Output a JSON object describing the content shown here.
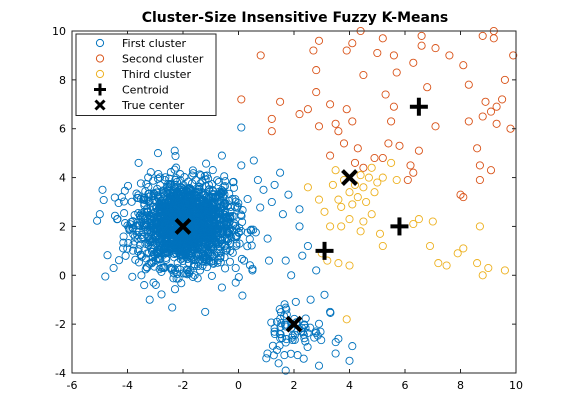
{
  "chart_data": {
    "type": "scatter",
    "title": "Cluster-Size Insensitive Fuzzy K-Means",
    "xlabel": "",
    "ylabel": "",
    "xlim": [
      -6,
      10
    ],
    "ylim": [
      -4,
      10
    ],
    "xticks": [
      "-6",
      "-4",
      "-2",
      "0",
      "2",
      "4",
      "6",
      "8",
      "10"
    ],
    "yticks": [
      "-4",
      "-2",
      "0",
      "2",
      "4",
      "6",
      "8",
      "10"
    ],
    "grid": false,
    "legend_position": "top-left",
    "series": [
      {
        "name": "First cluster",
        "marker": "circle",
        "color": "#0072BD",
        "dense_blobs": [
          {
            "center": [
              -1.9,
              2.1
            ],
            "spread": [
              0.85,
              0.85
            ],
            "count": 1800
          },
          {
            "center": [
              2.0,
              -2.2
            ],
            "spread": [
              0.55,
              0.65
            ],
            "count": 70
          }
        ],
        "points": [
          [
            0.1,
            6.05
          ],
          [
            0.55,
            4.7
          ],
          [
            0.9,
            3.5
          ],
          [
            1.2,
            3.0
          ],
          [
            1.5,
            4.2
          ],
          [
            1.8,
            3.3
          ],
          [
            1.6,
            2.5
          ],
          [
            1.05,
            1.5
          ],
          [
            0.2,
            0.6
          ],
          [
            -0.3,
            1.0
          ],
          [
            0.5,
            0.2
          ],
          [
            1.1,
            0.6
          ],
          [
            -0.1,
            -0.3
          ],
          [
            -0.6,
            -0.5
          ],
          [
            -3.4,
            -0.4
          ],
          [
            -4.5,
            0.3
          ],
          [
            -4.8,
            -0.05
          ],
          [
            -5.0,
            2.5
          ],
          [
            -4.9,
            3.5
          ],
          [
            -4.2,
            3.2
          ],
          [
            -3.6,
            4.6
          ],
          [
            -2.3,
            5.1
          ],
          [
            -0.6,
            4.9
          ],
          [
            -2.9,
            5.0
          ],
          [
            -3.2,
            -1.0
          ],
          [
            -1.2,
            -1.5
          ],
          [
            -3.5,
            0.0
          ],
          [
            -0.1,
            0.3
          ],
          [
            1.7,
            0.6
          ],
          [
            2.2,
            2.7
          ],
          [
            2.3,
            0.8
          ],
          [
            2.8,
            0.2
          ],
          [
            2.6,
            -1.0
          ],
          [
            3.1,
            -0.8
          ],
          [
            3.3,
            -1.5
          ],
          [
            3.6,
            -2.6
          ],
          [
            3.5,
            -3.2
          ],
          [
            4.1,
            -2.9
          ],
          [
            4.0,
            -3.5
          ],
          [
            2.9,
            -3.7
          ],
          [
            1.7,
            -3.9
          ],
          [
            1.0,
            -3.4
          ],
          [
            1.9,
            0.0
          ],
          [
            2.2,
            2.0
          ],
          [
            1.3,
            3.7
          ],
          [
            0.7,
            3.9
          ],
          [
            0.1,
            4.5
          ],
          [
            2.5,
            1.2
          ]
        ]
      },
      {
        "name": "Second cluster",
        "marker": "circle",
        "color": "#D95319",
        "points": [
          [
            0.8,
            9.0
          ],
          [
            0.1,
            7.2
          ],
          [
            1.2,
            6.4
          ],
          [
            1.5,
            7.1
          ],
          [
            1.2,
            5.9
          ],
          [
            2.2,
            6.6
          ],
          [
            2.5,
            6.8
          ],
          [
            2.8,
            7.5
          ],
          [
            2.9,
            6.1
          ],
          [
            3.3,
            7.0
          ],
          [
            3.5,
            6.2
          ],
          [
            3.6,
            5.9
          ],
          [
            3.3,
            4.9
          ],
          [
            3.8,
            5.4
          ],
          [
            3.9,
            6.8
          ],
          [
            4.1,
            6.3
          ],
          [
            4.3,
            5.2
          ],
          [
            4.2,
            4.6
          ],
          [
            4.5,
            4.4
          ],
          [
            4.9,
            4.8
          ],
          [
            5.2,
            4.8
          ],
          [
            5.4,
            5.4
          ],
          [
            5.5,
            6.3
          ],
          [
            5.6,
            6.9
          ],
          [
            5.3,
            7.4
          ],
          [
            5.7,
            8.3
          ],
          [
            5.6,
            9.0
          ],
          [
            5.2,
            9.7
          ],
          [
            5.0,
            9.1
          ],
          [
            4.4,
            10.0
          ],
          [
            4.1,
            9.5
          ],
          [
            4.5,
            8.2
          ],
          [
            3.9,
            9.2
          ],
          [
            3.8,
            10.1
          ],
          [
            2.9,
            10.2
          ],
          [
            2.7,
            9.2
          ],
          [
            2.8,
            8.4
          ],
          [
            2.9,
            9.6
          ],
          [
            6.1,
            3.9
          ],
          [
            6.2,
            4.5
          ],
          [
            6.5,
            5.1
          ],
          [
            7.1,
            6.1
          ],
          [
            6.8,
            7.7
          ],
          [
            6.3,
            8.7
          ],
          [
            6.6,
            9.4
          ],
          [
            6.6,
            9.8
          ],
          [
            7.1,
            9.3
          ],
          [
            7.6,
            9.0
          ],
          [
            7.9,
            10.2
          ],
          [
            8.1,
            8.6
          ],
          [
            8.3,
            7.8
          ],
          [
            8.3,
            6.3
          ],
          [
            8.6,
            5.2
          ],
          [
            8.7,
            4.5
          ],
          [
            8.8,
            6.5
          ],
          [
            8.8,
            9.8
          ],
          [
            8.9,
            7.1
          ],
          [
            9.1,
            6.7
          ],
          [
            9.3,
            6.9
          ],
          [
            9.3,
            6.2
          ],
          [
            9.5,
            7.2
          ],
          [
            9.2,
            9.7
          ],
          [
            9.2,
            10.0
          ],
          [
            9.6,
            8.0
          ],
          [
            9.8,
            6.0
          ],
          [
            9.9,
            9.0
          ],
          [
            8.0,
            3.3
          ],
          [
            8.1,
            3.2
          ],
          [
            8.7,
            3.9
          ],
          [
            9.1,
            4.3
          ],
          [
            5.8,
            5.3
          ],
          [
            6.3,
            4.2
          ]
        ]
      },
      {
        "name": "Third cluster",
        "marker": "circle",
        "color": "#EDB120",
        "points": [
          [
            2.5,
            3.6
          ],
          [
            2.9,
            3.1
          ],
          [
            3.1,
            2.6
          ],
          [
            3.4,
            3.7
          ],
          [
            3.6,
            3.1
          ],
          [
            3.7,
            2.8
          ],
          [
            3.8,
            3.9
          ],
          [
            4.0,
            3.4
          ],
          [
            4.1,
            2.9
          ],
          [
            4.2,
            3.7
          ],
          [
            4.3,
            3.2
          ],
          [
            4.4,
            4.1
          ],
          [
            4.5,
            3.6
          ],
          [
            4.6,
            3.0
          ],
          [
            4.7,
            4.0
          ],
          [
            4.9,
            3.4
          ],
          [
            5.0,
            3.8
          ],
          [
            5.2,
            4.0
          ],
          [
            4.8,
            2.5
          ],
          [
            4.5,
            2.2
          ],
          [
            5.1,
            1.7
          ],
          [
            5.2,
            1.2
          ],
          [
            4.4,
            1.8
          ],
          [
            3.7,
            2.0
          ],
          [
            4.0,
            2.3
          ],
          [
            3.3,
            2.0
          ],
          [
            3.0,
            0.9
          ],
          [
            3.2,
            0.6
          ],
          [
            3.6,
            0.5
          ],
          [
            4.0,
            0.4
          ],
          [
            6.3,
            2.1
          ],
          [
            6.5,
            2.3
          ],
          [
            7.0,
            2.2
          ],
          [
            6.9,
            1.2
          ],
          [
            7.2,
            0.5
          ],
          [
            7.5,
            0.4
          ],
          [
            7.9,
            0.9
          ],
          [
            8.1,
            1.1
          ],
          [
            8.7,
            2.0
          ],
          [
            8.6,
            0.5
          ],
          [
            8.8,
            0.0
          ],
          [
            9.0,
            0.3
          ],
          [
            9.6,
            0.2
          ],
          [
            3.9,
            -1.8
          ],
          [
            5.5,
            4.6
          ],
          [
            5.7,
            3.9
          ],
          [
            3.5,
            4.3
          ],
          [
            4.8,
            4.4
          ]
        ]
      },
      {
        "name": "Centroid",
        "marker": "plus",
        "color": "#000000",
        "points": [
          [
            6.5,
            6.9
          ],
          [
            5.8,
            2.0
          ],
          [
            3.1,
            1.0
          ]
        ]
      },
      {
        "name": "True center",
        "marker": "x",
        "color": "#000000",
        "points": [
          [
            -2.0,
            2.0
          ],
          [
            2.0,
            -2.0
          ],
          [
            4.0,
            4.0
          ]
        ]
      }
    ]
  }
}
